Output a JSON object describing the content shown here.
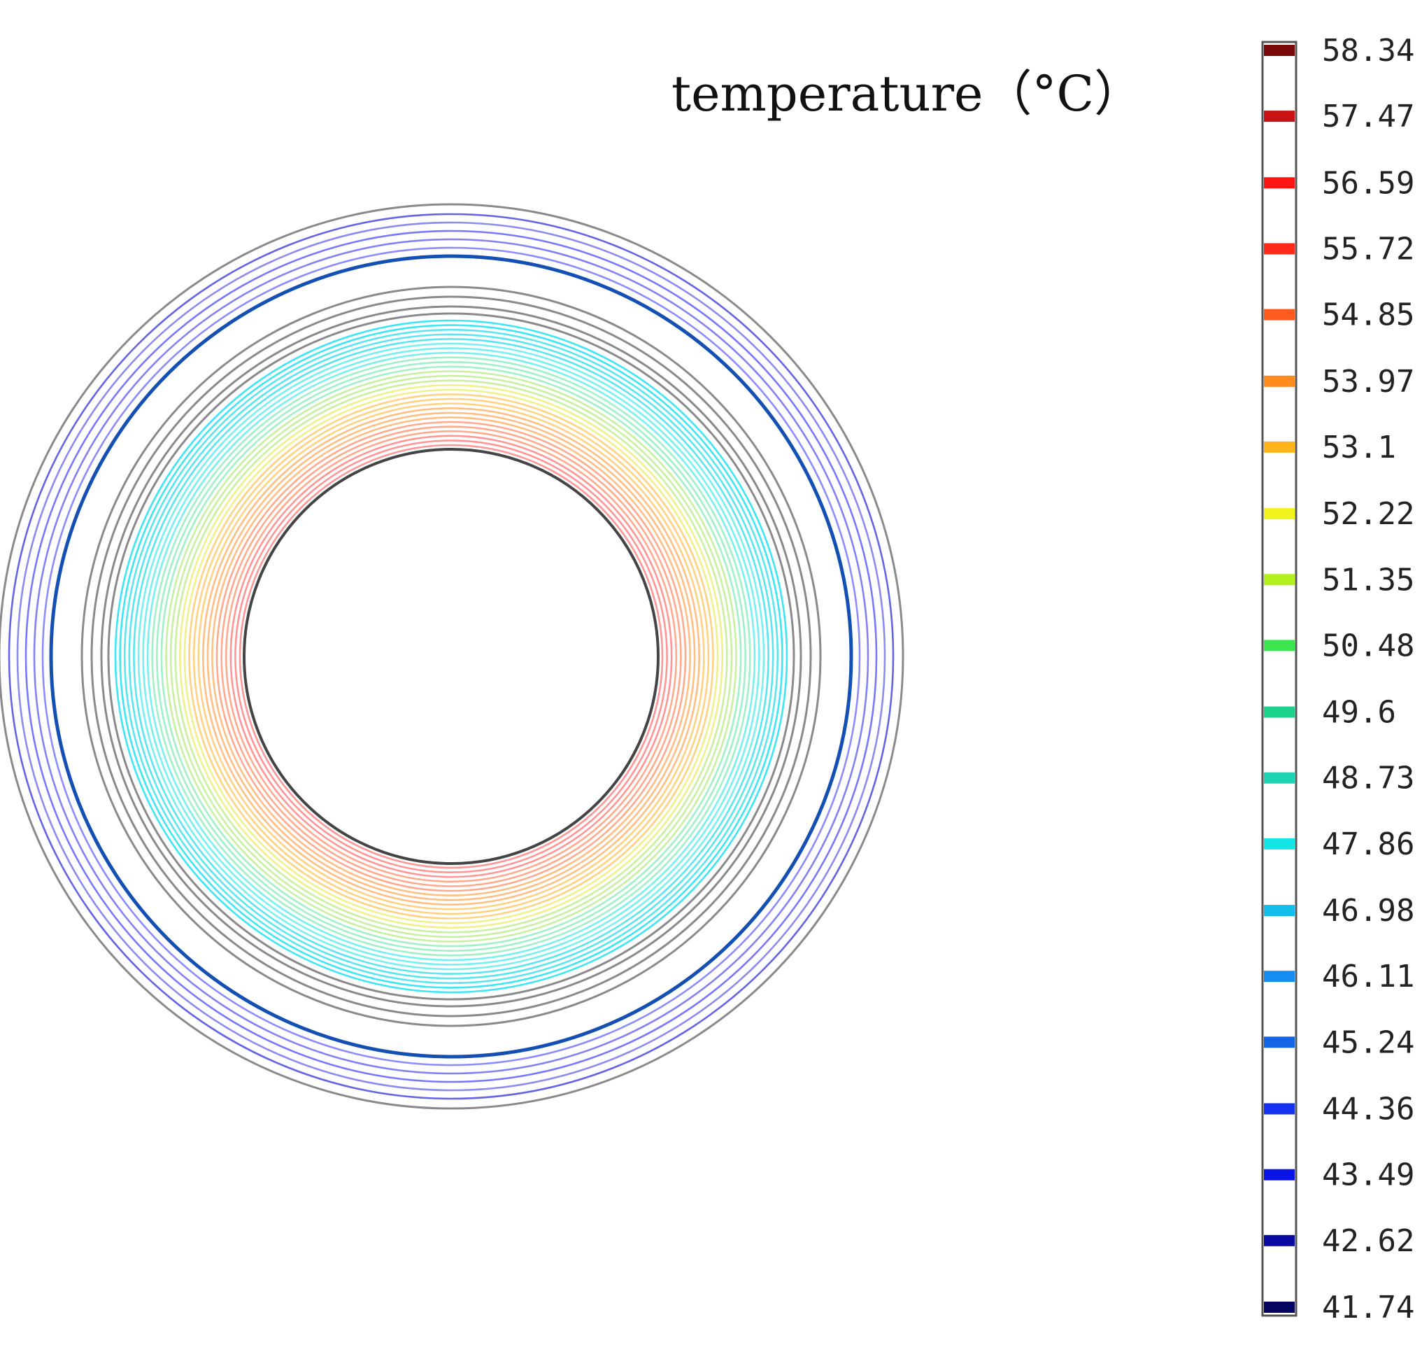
{
  "chart_data": {
    "type": "contour",
    "title": "temperature（°C）",
    "colorbar": {
      "position": "right",
      "levels": [
        58.34,
        57.47,
        56.59,
        55.72,
        54.85,
        53.97,
        53.1,
        52.22,
        51.35,
        50.48,
        49.6,
        48.73,
        47.86,
        46.98,
        46.11,
        45.24,
        44.36,
        43.49,
        42.62,
        41.74
      ],
      "tick_labels": [
        "58.34",
        "57.47",
        "56.59",
        "55.72",
        "54.85",
        "53.97",
        "53.1",
        "52.22",
        "51.35",
        "50.48",
        "49.6",
        "48.73",
        "47.86",
        "46.98",
        "46.11",
        "45.24",
        "44.36",
        "43.49",
        "42.62",
        "41.74"
      ],
      "colors": [
        "#7a0a0a",
        "#c81414",
        "#ff1414",
        "#ff2a1a",
        "#ff5a1e",
        "#ff8a1e",
        "#ffb41e",
        "#f2f21e",
        "#b4f01e",
        "#3ce650",
        "#1ed28c",
        "#1ed2b4",
        "#14e6e6",
        "#14beeb",
        "#148cf0",
        "#1464e6",
        "#1432f0",
        "#0a14e6",
        "#0a0aa0",
        "#060660"
      ],
      "range": [
        41.74,
        58.34
      ]
    },
    "geometry": "concentric annular layers",
    "contour_bands": [
      {
        "layer": "inner",
        "temperature_range": [
          47.86,
          58.34
        ],
        "colors": [
          "#ff9696",
          "#ffaa8c",
          "#ffbe82",
          "#ffd282",
          "#f0f08c",
          "#c8f0a0",
          "#a0f0c8",
          "#78f0f0",
          "#5ae6f0",
          "#3ce6f5"
        ]
      },
      {
        "layer": "outer",
        "temperature_range": [
          43.49,
          44.36
        ],
        "colors": [
          "#8c8cff",
          "#8282f5",
          "#7878ff",
          "#8c8cf0",
          "#6464e6"
        ]
      }
    ]
  }
}
